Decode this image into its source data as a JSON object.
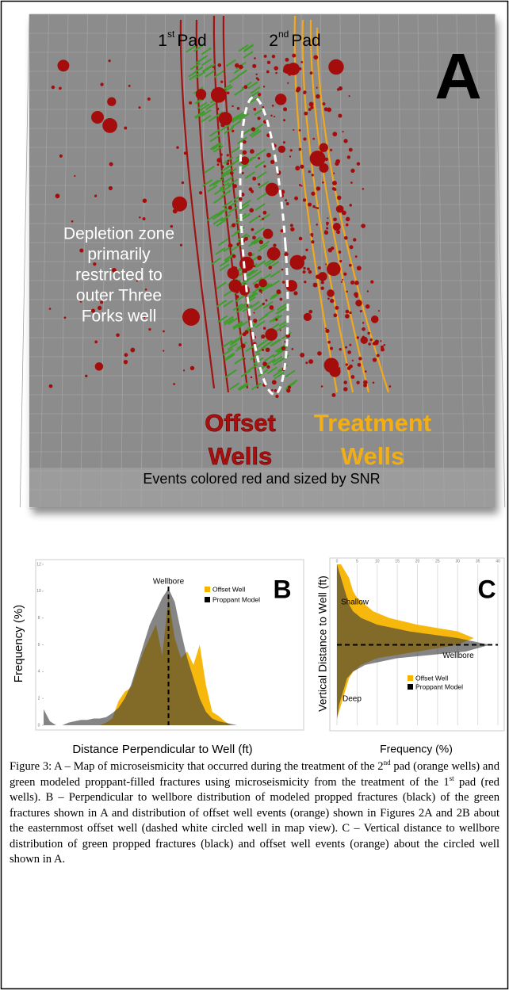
{
  "panel_a": {
    "pad1": {
      "number": "1",
      "suffix": "st",
      "label": "Pad"
    },
    "pad2": {
      "number": "2",
      "suffix": "nd",
      "label": "Pad"
    },
    "panel_label": "A",
    "depletion_note": [
      "Depletion zone",
      "primarily",
      "restricted to",
      "outer Three",
      "Forks well"
    ],
    "offset_wells": [
      "Offset",
      "Wells"
    ],
    "treatment_wells": [
      "Treatment",
      "Wells"
    ],
    "footer": "Events colored red and sized by SNR"
  },
  "chart_data": [
    {
      "type": "area",
      "panel_label": "B",
      "annotation": "Wellbore",
      "x_label": "Distance Perpendicular to Well (ft)",
      "y_label": "Frequency (%)",
      "x": [
        -1000,
        -950,
        -900,
        -850,
        -800,
        -750,
        -700,
        -650,
        -600,
        -550,
        -500,
        -450,
        -400,
        -350,
        -300,
        -250,
        -200,
        -150,
        -100,
        -50,
        0,
        50,
        100,
        150,
        200,
        250,
        300,
        350,
        400,
        450,
        500,
        550,
        600,
        650,
        700,
        750,
        800,
        850,
        900,
        950,
        1000
      ],
      "xlim": [
        -1000,
        1000
      ],
      "ylim": [
        0,
        12
      ],
      "yticks": [
        0,
        2,
        4,
        6,
        8,
        10,
        12
      ],
      "wellbore": 0,
      "series": [
        {
          "name": "Offset Well",
          "color": "#f5b400",
          "values": [
            0,
            0,
            0,
            0,
            0,
            0,
            0,
            0,
            0,
            0,
            0.2,
            0.5,
            1.8,
            2.5,
            2.8,
            4.2,
            5.5,
            6.5,
            7.5,
            5.2,
            9.5,
            6.5,
            5,
            5.5,
            4.5,
            6,
            3,
            1,
            0.7,
            0.3,
            0,
            0,
            0,
            0,
            0,
            0,
            0,
            0,
            0,
            0,
            0
          ]
        },
        {
          "name": "Proppant Model",
          "color": "#3a3a3a",
          "values": [
            1.2,
            0.3,
            0,
            0,
            0.2,
            0.3,
            0.4,
            0.4,
            0.5,
            0.5,
            0.6,
            0.9,
            1.3,
            2,
            3,
            4.5,
            6,
            7.5,
            8.5,
            9.5,
            10.2,
            9.2,
            7,
            5,
            3.5,
            2,
            1,
            0.5,
            0.3,
            0.2,
            0.1,
            0,
            0,
            0,
            0,
            0,
            0,
            0,
            0,
            0,
            0
          ]
        }
      ]
    },
    {
      "type": "horizontal-area",
      "panel_label": "C",
      "annotation": "Wellbore",
      "top_note": "Shallow",
      "bottom_note": "Deep",
      "x_label": "Frequency (%)",
      "y_label": "Vertical Distance to Well (ft)",
      "y": [
        300,
        275,
        250,
        225,
        200,
        175,
        150,
        125,
        100,
        75,
        50,
        25,
        0,
        -25,
        -50,
        -75,
        -100,
        -125,
        -150,
        -175,
        -200,
        -225,
        -250,
        -275,
        -300
      ],
      "xlim": [
        0,
        40
      ],
      "xticks": [
        0,
        5,
        10,
        15,
        20,
        25,
        30,
        35,
        40
      ],
      "ylim": [
        -300,
        300
      ],
      "wellbore": 0,
      "grid": true,
      "series": [
        {
          "name": "Offset Well",
          "color": "#f5b400",
          "values": [
            1,
            2,
            3,
            3.5,
            4,
            5,
            7,
            9,
            13,
            20,
            30,
            34,
            30,
            20,
            10,
            6,
            4,
            3,
            2.5,
            2,
            1.5,
            1,
            0.5,
            0,
            0
          ]
        },
        {
          "name": "Proppant Model",
          "color": "#3a3a3a",
          "values": [
            0,
            0.5,
            1,
            1.5,
            2,
            2.5,
            3,
            4,
            6,
            10,
            18,
            30,
            38,
            32,
            15,
            7,
            4,
            2.5,
            2,
            1.5,
            1,
            0.5,
            0.3,
            0,
            0
          ]
        }
      ]
    }
  ],
  "caption": [
    "Figure 3:  A – Map of microseismicity that occurred during the treatment of the 2",
    "nd",
    " pad (orange wells) and green modeled proppant-filled fractures using microseismicity from the treatment of the 1",
    "st",
    " pad (red wells). B – Perpendicular to wellbore distribution of modeled propped fractures (black) of the green fractures shown in A and distribution of offset well events (orange) shown in Figures 2A and 2B about the easternmost offset well (dashed white circled well in map view). C – Vertical distance to wellbore distribution of green propped fractures (black) and offset well events (orange) about the circled well shown in A."
  ]
}
